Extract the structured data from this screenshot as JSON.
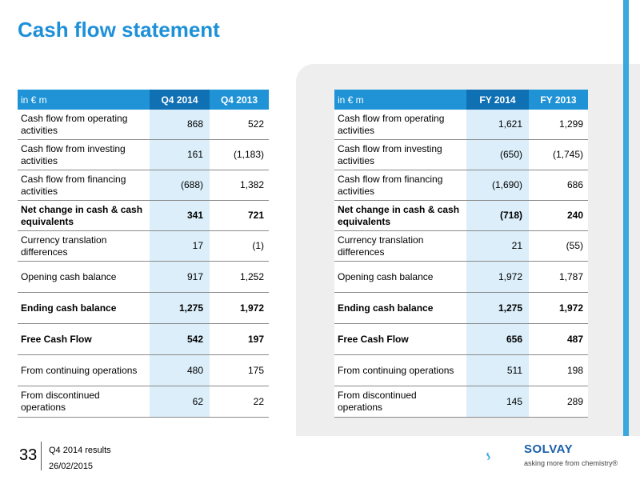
{
  "title": "Cash flow statement",
  "left_table": {
    "headers": [
      "in € m",
      "Q4 2014",
      "Q4 2013"
    ],
    "rows": [
      {
        "label": "Cash flow from operating activities",
        "v1": "868",
        "v2": "522",
        "bold": false
      },
      {
        "label": "Cash flow from investing activities",
        "v1": "161",
        "v2": "(1,183)",
        "bold": false
      },
      {
        "label": "Cash flow from financing activities",
        "v1": "(688)",
        "v2": "1,382",
        "bold": false
      },
      {
        "label": "Net change in cash & cash equivalents",
        "v1": "341",
        "v2": "721",
        "bold": true
      },
      {
        "label": "Currency translation differences",
        "v1": "17",
        "v2": "(1)",
        "bold": false
      },
      {
        "label": "Opening cash balance",
        "v1": "917",
        "v2": "1,252",
        "bold": false
      },
      {
        "label": "Ending cash balance",
        "v1": "1,275",
        "v2": "1,972",
        "bold": true
      },
      {
        "label": "Free Cash Flow",
        "v1": "542",
        "v2": "197",
        "bold": true
      },
      {
        "label": "From continuing operations",
        "v1": "480",
        "v2": "175",
        "bold": false
      },
      {
        "label": "From discontinued operations",
        "v1": "62",
        "v2": "22",
        "bold": false
      }
    ]
  },
  "right_table": {
    "headers": [
      "in € m",
      "FY 2014",
      "FY 2013"
    ],
    "rows": [
      {
        "label": "Cash flow from operating activities",
        "v1": "1,621",
        "v2": "1,299",
        "bold": false
      },
      {
        "label": "Cash flow from investing activities",
        "v1": "(650)",
        "v2": "(1,745)",
        "bold": false
      },
      {
        "label": "Cash flow from financing activities",
        "v1": "(1,690)",
        "v2": "686",
        "bold": false
      },
      {
        "label": "Net change in cash & cash equivalents",
        "v1": "(718)",
        "v2": "240",
        "bold": true
      },
      {
        "label": "Currency translation differences",
        "v1": "21",
        "v2": "(55)",
        "bold": false
      },
      {
        "label": "Opening cash balance",
        "v1": "1,972",
        "v2": "1,787",
        "bold": false
      },
      {
        "label": "Ending cash balance",
        "v1": "1,275",
        "v2": "1,972",
        "bold": true
      },
      {
        "label": "Free Cash Flow",
        "v1": "656",
        "v2": "487",
        "bold": true
      },
      {
        "label": "From continuing operations",
        "v1": "511",
        "v2": "198",
        "bold": false
      },
      {
        "label": "From discontinued operations",
        "v1": "145",
        "v2": "289",
        "bold": false
      }
    ]
  },
  "footer": {
    "page_number": "33",
    "line1": "Q4 2014 results",
    "line2": "26/02/2015"
  },
  "logo": {
    "name": "SOLVAY",
    "tagline": "asking more from chemistry®",
    "colors": {
      "primary": "#1a5fa8",
      "accent": "#3aa7de"
    }
  }
}
